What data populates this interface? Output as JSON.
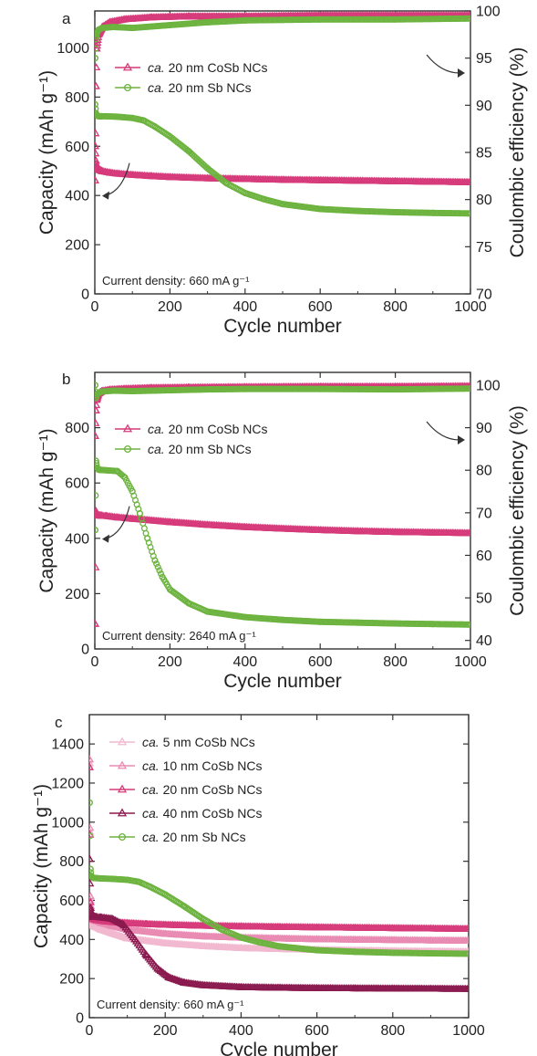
{
  "figure": {
    "panel_count": 3
  },
  "chart_data": [
    {
      "panel_letter": "a",
      "type": "scatter",
      "xlabel": "Cycle number",
      "ylabel": "Capacity (mAh g⁻¹)",
      "y2label": "Coulombic efficiency (%)",
      "xlim": [
        0,
        1000
      ],
      "ylim": [
        0,
        1150
      ],
      "y2lim": [
        70,
        100
      ],
      "xticks": [
        0,
        200,
        400,
        600,
        800,
        1000
      ],
      "yticks": [
        0,
        200,
        400,
        600,
        800,
        1000
      ],
      "y2ticks": [
        70,
        75,
        80,
        85,
        90,
        95,
        100
      ],
      "legend_position": "upper-left",
      "annotation": "Current density: 660 mA g⁻¹",
      "series": [
        {
          "name_italic": "ca.",
          "name": " 20 nm CoSb NCs",
          "marker": "triangle",
          "color": "#d63a7a",
          "axis": "left",
          "x": [
            1,
            3,
            5,
            10,
            20,
            40,
            60,
            100,
            150,
            200,
            300,
            400,
            500,
            600,
            700,
            800,
            900,
            1000
          ],
          "y": [
            600,
            540,
            515,
            505,
            498,
            492,
            488,
            483,
            478,
            474,
            469,
            466,
            463,
            461,
            459,
            457,
            455,
            453
          ]
        },
        {
          "name_italic": "ca.",
          "name": " 20 nm Sb NCs",
          "marker": "circle",
          "color": "#6db33f",
          "axis": "left",
          "x": [
            1,
            3,
            5,
            10,
            30,
            60,
            100,
            130,
            160,
            200,
            250,
            300,
            350,
            400,
            450,
            500,
            600,
            700,
            800,
            900,
            1000
          ],
          "y": [
            770,
            735,
            725,
            722,
            722,
            720,
            715,
            705,
            680,
            640,
            580,
            510,
            450,
            410,
            385,
            365,
            345,
            337,
            332,
            329,
            327
          ]
        },
        {
          "name": "CoSb CE",
          "marker": "triangle",
          "color": "#d63a7a",
          "axis": "right",
          "legend": false,
          "x": [
            1,
            3,
            5,
            10,
            20,
            40,
            80,
            150,
            250,
            400,
            600,
            800,
            1000
          ],
          "y": [
            82,
            92,
            96,
            97.5,
            98.3,
            98.8,
            99.1,
            99.3,
            99.4,
            99.4,
            99.5,
            99.5,
            99.5
          ]
        },
        {
          "name": "Sb CE",
          "marker": "circle",
          "color": "#6db33f",
          "axis": "right",
          "legend": false,
          "x": [
            1,
            3,
            5,
            10,
            20,
            50,
            100,
            200,
            300,
            400,
            600,
            800,
            1000
          ],
          "y": [
            95,
            97,
            97.6,
            98,
            98.2,
            98.3,
            98.2,
            98.5,
            98.8,
            99,
            99.1,
            99.1,
            99.2
          ]
        }
      ]
    },
    {
      "panel_letter": "b",
      "type": "scatter",
      "xlabel": "Cycle number",
      "ylabel": "Capacity (mAh g⁻¹)",
      "y2label": "Coulombic efficiency (%)",
      "xlim": [
        0,
        1000
      ],
      "ylim": [
        0,
        1000
      ],
      "y2lim": [
        38,
        103
      ],
      "xticks": [
        0,
        200,
        400,
        600,
        800,
        1000
      ],
      "yticks": [
        0,
        200,
        400,
        600,
        800
      ],
      "y2ticks": [
        40,
        50,
        60,
        70,
        80,
        90,
        100
      ],
      "legend_position": "upper-left",
      "annotation": "Current density: 2640 mA g⁻¹",
      "series": [
        {
          "name_italic": "ca.",
          "name": " 20 nm CoSb NCs",
          "marker": "triangle",
          "color": "#d63a7a",
          "axis": "left",
          "x": [
            1,
            3,
            6,
            10,
            30,
            60,
            100,
            200,
            300,
            400,
            500,
            600,
            700,
            800,
            900,
            1000
          ],
          "y": [
            90,
            498,
            488,
            482,
            480,
            475,
            470,
            458,
            448,
            440,
            434,
            429,
            425,
            422,
            420,
            418
          ]
        },
        {
          "name_italic": "ca.",
          "name": " 20 nm Sb NCs",
          "marker": "circle",
          "color": "#6db33f",
          "axis": "left",
          "x": [
            1,
            3,
            6,
            10,
            30,
            60,
            80,
            100,
            120,
            140,
            160,
            180,
            200,
            250,
            300,
            400,
            500,
            600,
            700,
            800,
            900,
            1000
          ],
          "y": [
            430,
            680,
            655,
            648,
            646,
            643,
            620,
            570,
            490,
            400,
            320,
            260,
            215,
            165,
            135,
            115,
            105,
            98,
            95,
            92,
            90,
            88
          ]
        },
        {
          "name": "CoSb CE",
          "marker": "triangle",
          "color": "#d63a7a",
          "axis": "right",
          "legend": false,
          "x": [
            1,
            3,
            5,
            10,
            20,
            40,
            80,
            150,
            250,
            400,
            600,
            800,
            1000
          ],
          "y": [
            88,
            94,
            96.5,
            98,
            98.6,
            98.9,
            99.1,
            99.3,
            99.4,
            99.5,
            99.6,
            99.6,
            99.7
          ]
        },
        {
          "name": "Sb CE",
          "marker": "circle",
          "color": "#6db33f",
          "axis": "right",
          "legend": false,
          "x": [
            1,
            3,
            5,
            10,
            20,
            50,
            100,
            200,
            300,
            400,
            600,
            800,
            1000
          ],
          "y": [
            100,
            97,
            97.8,
            98.2,
            98.5,
            98.7,
            98.6,
            98.8,
            99,
            99.1,
            99.1,
            99,
            99.2
          ]
        }
      ]
    },
    {
      "panel_letter": "c",
      "type": "scatter",
      "xlabel": "Cycle number",
      "ylabel": "Capacity (mAh g⁻¹)",
      "xlim": [
        0,
        1000
      ],
      "ylim": [
        0,
        1550
      ],
      "xticks": [
        0,
        200,
        400,
        600,
        800,
        1000
      ],
      "yticks": [
        0,
        200,
        400,
        600,
        800,
        1000,
        1200,
        1400
      ],
      "legend_position": "upper-left",
      "annotation": "Current density: 660 mA g⁻¹",
      "series": [
        {
          "name_italic": "ca.",
          "name": " 5 nm CoSb NCs",
          "marker": "triangle",
          "color": "#f2b8cf",
          "axis": "left",
          "x": [
            1,
            3,
            5,
            10,
            30,
            60,
            100,
            200,
            300,
            400,
            500,
            600,
            700,
            800,
            900,
            1000
          ],
          "y": [
            1300,
            600,
            490,
            470,
            450,
            430,
            405,
            380,
            365,
            355,
            350,
            346,
            343,
            340,
            338,
            336
          ]
        },
        {
          "name_italic": "ca.",
          "name": " 10 nm CoSb NCs",
          "marker": "triangle",
          "color": "#e98ab2",
          "axis": "left",
          "x": [
            1,
            3,
            5,
            10,
            30,
            60,
            100,
            200,
            300,
            400,
            500,
            600,
            700,
            800,
            900,
            1000
          ],
          "y": [
            1320,
            620,
            520,
            500,
            485,
            468,
            450,
            428,
            415,
            408,
            404,
            400,
            398,
            396,
            394,
            393
          ]
        },
        {
          "name_italic": "ca.",
          "name": " 20 nm CoSb NCs",
          "marker": "triangle",
          "color": "#d63a7a",
          "axis": "left",
          "x": [
            1,
            3,
            5,
            10,
            20,
            40,
            60,
            100,
            150,
            200,
            300,
            400,
            500,
            600,
            700,
            800,
            900,
            1000
          ],
          "y": [
            1280,
            590,
            530,
            505,
            498,
            492,
            488,
            483,
            478,
            474,
            469,
            466,
            463,
            461,
            459,
            457,
            455,
            453
          ]
        },
        {
          "name_italic": "ca.",
          "name": " 40 nm CoSb NCs",
          "marker": "triangle",
          "color": "#8a1a4f",
          "axis": "left",
          "x": [
            1,
            3,
            6,
            10,
            30,
            60,
            90,
            120,
            150,
            180,
            210,
            250,
            300,
            400,
            500,
            600,
            700,
            800,
            900,
            1000
          ],
          "y": [
            810,
            560,
            520,
            515,
            512,
            505,
            475,
            400,
            320,
            250,
            205,
            178,
            165,
            155,
            152,
            150,
            149,
            148,
            147,
            146
          ]
        },
        {
          "name_italic": "ca.",
          "name": " 20 nm Sb NCs",
          "marker": "circle",
          "color": "#6db33f",
          "axis": "left",
          "x": [
            1,
            3,
            5,
            10,
            30,
            60,
            100,
            130,
            160,
            200,
            250,
            300,
            350,
            400,
            450,
            500,
            600,
            700,
            800,
            900,
            1000
          ],
          "y": [
            1100,
            760,
            725,
            715,
            712,
            710,
            705,
            695,
            670,
            630,
            570,
            505,
            450,
            410,
            385,
            365,
            345,
            337,
            332,
            329,
            327
          ]
        }
      ]
    }
  ]
}
